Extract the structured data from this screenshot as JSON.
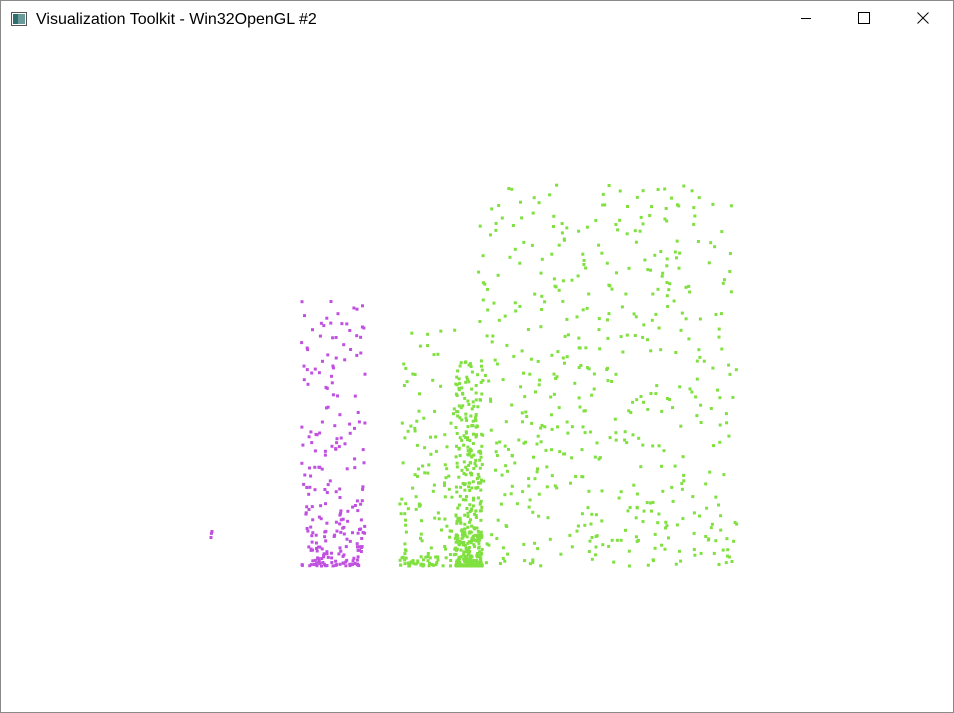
{
  "window": {
    "title": "Visualization Toolkit - Win32OpenGL #2",
    "icons": {
      "app": "vtk-app-icon",
      "minimize": "minimize-icon",
      "maximize": "maximize-icon",
      "close": "close-icon"
    }
  },
  "colors": {
    "background": "#ffffff",
    "magenta_points": "#c050e0",
    "green_points": "#80e040",
    "titlebar_text": "#000000"
  },
  "chart_data": {
    "type": "scatter",
    "title": "",
    "xlabel": "",
    "ylabel": "",
    "xlim": [
      0,
      100
    ],
    "ylim": [
      0,
      100
    ],
    "grid": false,
    "legend": "none",
    "series": [
      {
        "color": "#c050e0",
        "clusters": [
          {
            "count": 3,
            "x_range": [
              0.0,
              0.2
            ],
            "y_range": [
              0.0,
              11.0
            ],
            "distribution": "uniform"
          },
          {
            "count": 240,
            "x_range": [
              17.0,
              29.0
            ],
            "y_range": [
              0.0,
              70.0
            ],
            "distribution": "bottom-weighted"
          }
        ]
      },
      {
        "color": "#80e040",
        "clusters": [
          {
            "count": 140,
            "x_range": [
              35.5,
              46.0
            ],
            "y_range": [
              0.0,
              62.0
            ],
            "distribution": "bottom-weighted"
          },
          {
            "count": 420,
            "x_range": [
              46.0,
              51.0
            ],
            "y_range": [
              0.0,
              54.0
            ],
            "distribution": "dense-bottom"
          },
          {
            "count": 520,
            "x_range": [
              50.0,
              99.0
            ],
            "y_range": [
              0.0,
              100.0
            ],
            "distribution": "spread"
          }
        ]
      }
    ]
  }
}
